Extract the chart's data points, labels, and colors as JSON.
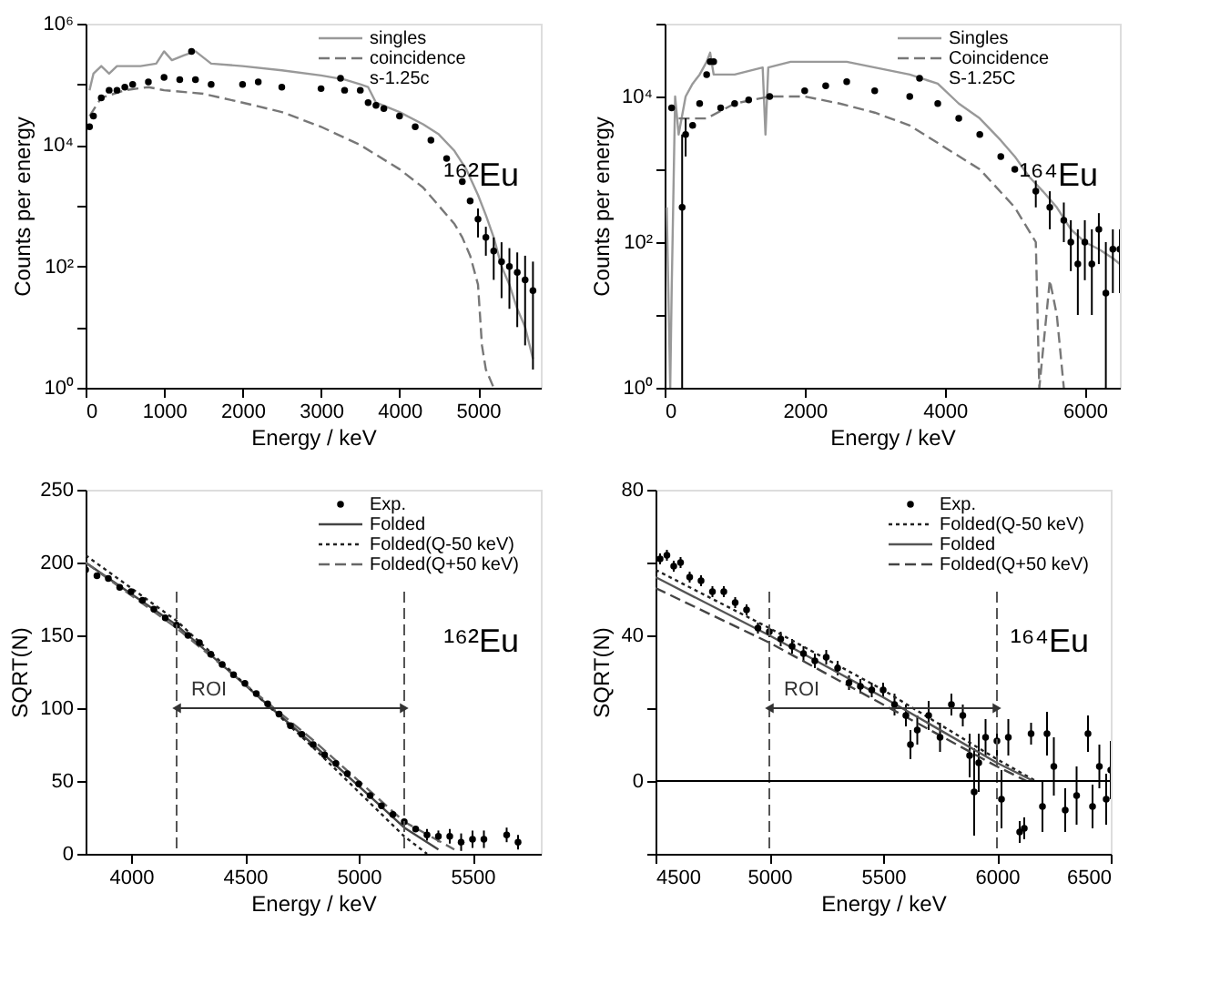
{
  "chart_data": [
    {
      "type": "line",
      "xlabel": "Energy / keV",
      "ylabel": "Counts per energy",
      "xlim": [
        0,
        5800
      ],
      "xticks": [
        0,
        1000,
        2000,
        3000,
        4000,
        5000
      ],
      "ylim": [
        1,
        1000000
      ],
      "yticks": [
        {
          "value": 1,
          "label": "10⁰"
        },
        {
          "value": 10,
          "label": null
        },
        {
          "value": 100,
          "label": "10²"
        },
        {
          "value": 1000,
          "label": null
        },
        {
          "value": 10000,
          "label": "10⁴"
        },
        {
          "value": 100000,
          "label": null
        },
        {
          "value": 1000000,
          "label": "10⁶"
        }
      ],
      "log": "y",
      "grid": false,
      "legend": "top right",
      "annotations": [
        "¹⁶²Eu"
      ],
      "series": [
        {
          "name": "singles",
          "color": "#999999",
          "line_style": "solid",
          "x": [
            50,
            100,
            200,
            300,
            400,
            500,
            700,
            900,
            1000,
            1100,
            1250,
            1400,
            1600,
            2000,
            2500,
            3000,
            3300,
            3500,
            3600,
            3700,
            4000,
            4300,
            4500,
            4700,
            4850,
            5000,
            5100,
            5200,
            5300,
            5400,
            5500,
            5600,
            5700
          ],
          "values": [
            80000,
            150000,
            200000,
            150000,
            200000,
            200000,
            200000,
            220000,
            350000,
            250000,
            300000,
            350000,
            220000,
            200000,
            170000,
            140000,
            120000,
            100000,
            90000,
            50000,
            35000,
            22000,
            15000,
            8000,
            4000,
            1500,
            700,
            300,
            100,
            50,
            20,
            10,
            3
          ]
        },
        {
          "name": "coincidence",
          "color": "#777777",
          "line_style": "dashed",
          "x": [
            50,
            200,
            500,
            800,
            1000,
            1500,
            2000,
            2500,
            3000,
            3500,
            4000,
            4300,
            4500,
            4700,
            4800,
            4900,
            5000,
            5050,
            5100,
            5200
          ],
          "values": [
            30000,
            60000,
            80000,
            90000,
            80000,
            70000,
            50000,
            35000,
            20000,
            10000,
            4000,
            2000,
            1000,
            500,
            300,
            150,
            50,
            5,
            2,
            1
          ]
        },
        {
          "name": "s-1.25c",
          "type": "scatter",
          "color": "#000000",
          "marker": "circle",
          "x": [
            50,
            100,
            200,
            300,
            400,
            500,
            600,
            800,
            1000,
            1200,
            1350,
            1400,
            1600,
            2000,
            2200,
            2500,
            3000,
            3300,
            3500,
            3600,
            3700,
            3800,
            4000,
            4200,
            4400,
            4600,
            4800,
            4900,
            5000,
            5100,
            5200,
            5300,
            5400,
            5500,
            5600,
            5700
          ],
          "values": [
            20000,
            30000,
            60000,
            80000,
            80000,
            90000,
            100000,
            110000,
            130000,
            120000,
            350000,
            120000,
            100000,
            100000,
            110000,
            90000,
            85000,
            80000,
            80000,
            50000,
            45000,
            40000,
            30000,
            20000,
            12000,
            6000,
            2500,
            1200,
            600,
            300,
            180,
            120,
            100,
            80,
            60,
            40
          ],
          "errors": [
            null,
            null,
            null,
            null,
            null,
            null,
            null,
            null,
            null,
            null,
            null,
            null,
            null,
            null,
            null,
            null,
            null,
            null,
            null,
            null,
            null,
            null,
            null,
            null,
            null,
            null,
            null,
            null,
            [
              300,
              900
            ],
            [
              150,
              450
            ],
            [
              60,
              300
            ],
            [
              30,
              250
            ],
            [
              20,
              200
            ],
            [
              10,
              170
            ],
            [
              5,
              150
            ],
            [
              2,
              120
            ]
          ]
        }
      ]
    },
    {
      "type": "line",
      "xlabel": "Energy / keV",
      "ylabel": "Counts per energy",
      "xlim": [
        0,
        6500
      ],
      "xticks": [
        0,
        2000,
        4000,
        6000
      ],
      "ylim": [
        1,
        100000
      ],
      "yticks": [
        {
          "value": 1,
          "label": "10⁰"
        },
        {
          "value": 10,
          "label": null
        },
        {
          "value": 100,
          "label": "10²"
        },
        {
          "value": 1000,
          "label": null
        },
        {
          "value": 10000,
          "label": "10⁴"
        },
        {
          "value": 100000,
          "label": null
        }
      ],
      "log": "y",
      "grid": false,
      "legend": "top right",
      "annotations": [
        "¹⁶⁴Eu"
      ],
      "series": [
        {
          "name": "Singles",
          "color": "#999999",
          "line_style": "solid",
          "x": [
            30,
            80,
            100,
            150,
            200,
            300,
            400,
            500,
            600,
            650,
            700,
            1000,
            1400,
            1440,
            1480,
            1800,
            2000,
            2400,
            2600,
            3000,
            3500,
            3900,
            4200,
            4500,
            4800,
            5000,
            5200,
            5400,
            5600,
            5800,
            6000,
            6200,
            6400,
            6500
          ],
          "values": [
            300,
            1,
            20,
            10000,
            3000,
            10000,
            15000,
            20000,
            30000,
            40000,
            20000,
            20000,
            25000,
            3000,
            25000,
            30000,
            30000,
            30000,
            30000,
            25000,
            20000,
            15000,
            8000,
            5000,
            2500,
            1500,
            800,
            500,
            300,
            150,
            100,
            80,
            60,
            50
          ]
        },
        {
          "name": "Coincidence",
          "color": "#777777",
          "line_style": "dashed",
          "x": [
            200,
            400,
            600,
            1000,
            1500,
            2000,
            2500,
            3000,
            3500,
            4000,
            4500,
            5000,
            5300,
            5350,
            5500,
            5600,
            5700
          ],
          "values": [
            5000,
            5000,
            5000,
            8000,
            10000,
            10000,
            8000,
            6000,
            4000,
            2000,
            1000,
            300,
            100,
            1,
            30,
            10,
            1
          ]
        },
        {
          "name": "S-1.25C",
          "type": "scatter",
          "color": "#000000",
          "marker": "circle",
          "x": [
            100,
            250,
            300,
            400,
            500,
            600,
            650,
            700,
            800,
            1000,
            1200,
            1500,
            2000,
            2300,
            2600,
            3000,
            3500,
            3900,
            4200,
            4500,
            4800,
            5000,
            5300,
            5500,
            5700,
            5800,
            5900,
            6000,
            6100,
            6200,
            6300,
            6400,
            6500
          ],
          "values": [
            7000,
            300,
            3000,
            4000,
            8000,
            20000,
            30000,
            30000,
            7000,
            8000,
            9000,
            10000,
            12000,
            14000,
            16000,
            12000,
            10000,
            8000,
            5000,
            3000,
            1500,
            1000,
            500,
            300,
            200,
            100,
            50,
            100,
            50,
            150,
            20,
            80,
            80
          ],
          "errors": [
            null,
            [
              1,
              3000
            ],
            [
              1500,
              5000
            ],
            null,
            null,
            null,
            null,
            null,
            null,
            null,
            null,
            null,
            null,
            null,
            null,
            null,
            null,
            null,
            null,
            null,
            null,
            null,
            [
              300,
              700
            ],
            [
              150,
              500
            ],
            [
              100,
              350
            ],
            [
              40,
              200
            ],
            [
              10,
              150
            ],
            [
              30,
              200
            ],
            [
              10,
              150
            ],
            [
              50,
              250
            ],
            [
              1,
              100
            ],
            [
              20,
              150
            ],
            [
              20,
              150
            ]
          ]
        }
      ]
    },
    {
      "type": "line",
      "xlabel": "Energy / keV",
      "ylabel": "SQRT(N)",
      "xlim": [
        3800,
        5800
      ],
      "xticks": [
        4000,
        4500,
        5000,
        5500
      ],
      "ylim": [
        0,
        250
      ],
      "yticks": [
        0,
        50,
        100,
        150,
        200,
        250
      ],
      "grid": false,
      "legend": "top right",
      "annotations": [
        "¹⁶²Eu",
        "ROI"
      ],
      "ref_lines": [
        {
          "axis": "x",
          "value": 4200,
          "line_style": "dashed",
          "color": "#555555"
        },
        {
          "axis": "x",
          "value": 5200,
          "line_style": "dashed",
          "color": "#555555"
        }
      ],
      "series": [
        {
          "name": "Exp.",
          "type": "scatter",
          "color": "#000000",
          "marker": "circle",
          "x": [
            3800,
            3850,
            3900,
            3950,
            4000,
            4050,
            4100,
            4150,
            4200,
            4250,
            4300,
            4350,
            4400,
            4450,
            4500,
            4550,
            4600,
            4650,
            4700,
            4750,
            4800,
            4850,
            4900,
            4950,
            5000,
            5050,
            5100,
            5150,
            5200,
            5250,
            5300,
            5350,
            5400,
            5450,
            5500,
            5550,
            5650,
            5700
          ],
          "values": [
            195,
            191,
            189,
            183,
            180,
            174,
            168,
            162,
            157,
            150,
            145,
            137,
            130,
            123,
            117,
            110,
            103,
            96,
            88,
            82,
            75,
            68,
            62,
            55,
            48,
            40,
            33,
            27,
            22,
            17,
            13,
            12,
            12,
            8,
            10,
            10,
            13,
            8
          ],
          "errors": [
            null,
            null,
            null,
            null,
            null,
            null,
            null,
            null,
            null,
            null,
            null,
            null,
            null,
            null,
            null,
            null,
            null,
            null,
            null,
            null,
            null,
            null,
            null,
            null,
            null,
            null,
            null,
            null,
            null,
            null,
            4,
            4,
            5,
            6,
            6,
            6,
            5,
            5
          ]
        },
        {
          "name": "Folded",
          "color": "#444444",
          "line_style": "solid",
          "x": [
            3800,
            4200,
            4800,
            5200,
            5350
          ],
          "values": [
            200,
            157,
            75,
            18,
            3
          ]
        },
        {
          "name": "Folded(Q-50 keV)",
          "color": "#222222",
          "line_style": "dotted",
          "x": [
            3800,
            4200,
            4800,
            5200,
            5300
          ],
          "values": [
            205,
            160,
            73,
            12,
            0
          ]
        },
        {
          "name": "Folded(Q+50 keV)",
          "color": "#666666",
          "line_style": "dashed",
          "x": [
            3800,
            4200,
            4800,
            5200,
            5420
          ],
          "values": [
            200,
            155,
            78,
            22,
            3
          ]
        }
      ]
    },
    {
      "type": "line",
      "xlabel": "Energy / keV",
      "ylabel": "SQRT(N)",
      "xlim": [
        4500,
        6500
      ],
      "xticks": [
        4500,
        5000,
        5500,
        6000,
        6500
      ],
      "ylim": [
        -20,
        80
      ],
      "yticks": [
        {
          "value": -20,
          "label": null
        },
        0,
        {
          "value": 20,
          "label": null
        },
        40,
        {
          "value": 60,
          "label": null
        },
        80
      ],
      "grid": false,
      "legend": "top right",
      "annotations": [
        "¹⁶⁴Eu",
        "ROI"
      ],
      "ref_lines": [
        {
          "axis": "x",
          "value": 5000,
          "line_style": "dashed",
          "color": "#555555"
        },
        {
          "axis": "x",
          "value": 6000,
          "line_style": "dashed",
          "color": "#555555"
        },
        {
          "axis": "y",
          "value": 0,
          "line_style": "solid",
          "color": "#000000"
        }
      ],
      "series": [
        {
          "name": "Exp.",
          "type": "scatter",
          "color": "#000000",
          "marker": "circle",
          "x": [
            4520,
            4550,
            4580,
            4610,
            4650,
            4700,
            4750,
            4800,
            4850,
            4900,
            4950,
            5000,
            5050,
            5100,
            5150,
            5200,
            5250,
            5300,
            5350,
            5400,
            5450,
            5500,
            5550,
            5600,
            5620,
            5650,
            5700,
            5750,
            5800,
            5850,
            5880,
            5900,
            5920,
            5950,
            6000,
            6020,
            6050,
            6100,
            6120,
            6150,
            6200,
            6220,
            6250,
            6300,
            6350,
            6400,
            6420,
            6450,
            6480,
            6500
          ],
          "values": [
            61,
            62,
            59,
            60,
            56,
            55,
            52,
            52,
            49,
            47,
            42,
            41,
            39,
            37,
            35,
            33,
            34,
            31,
            27,
            26,
            25,
            25,
            21,
            18,
            10,
            14,
            18,
            12,
            21,
            18,
            7,
            -3,
            5,
            12,
            11,
            -5,
            12,
            -14,
            -13,
            13,
            -7,
            13,
            4,
            -8,
            -4,
            13,
            -7,
            4,
            -5,
            3
          ],
          "errors": [
            1.5,
            1.5,
            1.5,
            1.5,
            1.5,
            1.5,
            1.5,
            1.5,
            1.5,
            1.5,
            1.5,
            1.5,
            2,
            2,
            2,
            2,
            2,
            2,
            2,
            2,
            2,
            2,
            3,
            3,
            4,
            4,
            4,
            4,
            3,
            3,
            6,
            12,
            8,
            5,
            5,
            8,
            5,
            3,
            3,
            3,
            7,
            6,
            8,
            6,
            8,
            5,
            6,
            6,
            7,
            8
          ]
        },
        {
          "name": "Folded(Q-50 keV)",
          "color": "#222222",
          "line_style": "dotted",
          "x": [
            4500,
            5000,
            5500,
            6000,
            6170
          ],
          "values": [
            58,
            42,
            25,
            6,
            0
          ]
        },
        {
          "name": "Folded",
          "color": "#555555",
          "line_style": "solid",
          "x": [
            4500,
            5000,
            5500,
            6000,
            6160
          ],
          "values": [
            56,
            40,
            23,
            5,
            0
          ]
        },
        {
          "name": "Folded(Q+50 keV)",
          "color": "#444444",
          "line_style": "dashed",
          "x": [
            4500,
            5000,
            5500,
            6000,
            6130
          ],
          "values": [
            53,
            38,
            21,
            4,
            0
          ]
        }
      ]
    }
  ]
}
